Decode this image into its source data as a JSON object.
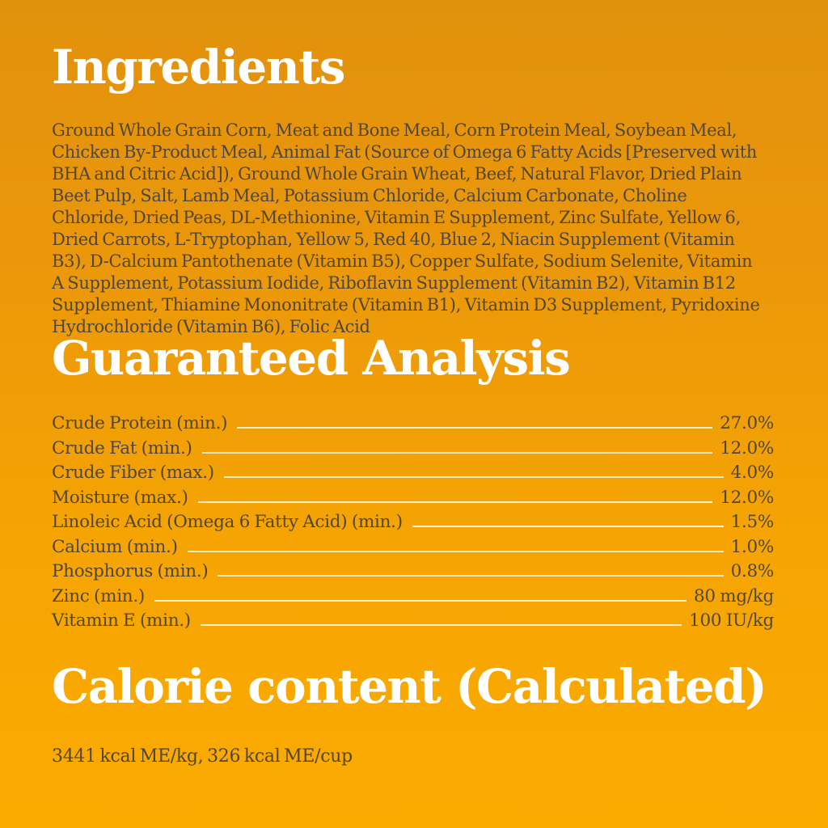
{
  "theme": {
    "background_top": "#e2910d",
    "background_bottom": "#fbab00",
    "heading_color": "#ffffff",
    "text_color": "#514639",
    "leader_line_color": "#f8efc8"
  },
  "ingredients": {
    "title": "Ingredients",
    "text": "Ground Whole Grain Corn, Meat and Bone Meal, Corn Protein Meal, Soybean Meal, Chicken By-Product Meal, Animal Fat (Source of Omega 6 Fatty Acids [Preserved with BHA and Citric Acid]), Ground Whole Grain Wheat, Beef, Natural Flavor, Dried Plain Beet Pulp, Salt, Lamb Meal, Potassium Chloride, Calcium Carbonate, Choline Chloride, Dried Peas, DL-Methionine, Vitamin E Supplement, Zinc Sulfate, Yellow 6, Dried Carrots, L-Tryptophan, Yellow 5, Red 40, Blue 2, Niacin Supplement (Vitamin B3), D-Calcium Pantothenate (Vitamin B5), Copper Sulfate, Sodium Selenite, Vitamin A Supplement, Potassium Iodide, Riboflavin Supplement (Vitamin B2), Vitamin B12 Supplement, Thiamine Mononitrate (Vitamin B1), Vitamin D3 Supplement, Pyridoxine Hydrochloride (Vitamin B6), Folic Acid"
  },
  "guaranteed_analysis": {
    "title": "Guaranteed Analysis",
    "rows": [
      {
        "label": "Crude Protein (min.)",
        "value": "27.0%"
      },
      {
        "label": "Crude Fat (min.)",
        "value": "12.0%"
      },
      {
        "label": "Crude Fiber (max.)",
        "value": "4.0%"
      },
      {
        "label": "Moisture (max.)",
        "value": "12.0%"
      },
      {
        "label": "Linoleic Acid (Omega 6 Fatty Acid) (min.)",
        "value": "1.5%"
      },
      {
        "label": "Calcium (min.)",
        "value": "1.0%"
      },
      {
        "label": "Phosphorus (min.)",
        "value": "0.8%"
      },
      {
        "label": "Zinc (min.)",
        "value": "80 mg/kg"
      },
      {
        "label": "Vitamin E (min.)",
        "value": "100 IU/kg"
      }
    ]
  },
  "calorie_content": {
    "title": "Calorie content (Calculated)",
    "text": "3441 kcal ME/kg, 326 kcal ME/cup"
  }
}
